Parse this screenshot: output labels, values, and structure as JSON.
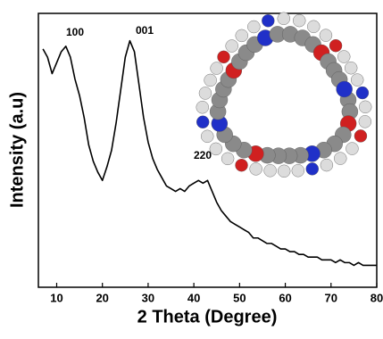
{
  "chart_data": {
    "type": "line",
    "x_label": "2 Theta (Degree)",
    "y_label": "Intensity (a.u)",
    "annotations": [
      "100",
      "001",
      "220"
    ],
    "x": [
      7,
      8,
      9,
      10,
      11,
      12,
      13,
      14,
      15,
      16,
      17,
      18,
      19,
      20,
      21,
      22,
      23,
      24,
      25,
      26,
      27,
      28,
      29,
      30,
      31,
      32,
      33,
      34,
      35,
      36,
      37,
      38,
      39,
      40,
      41,
      42,
      43,
      44,
      45,
      46,
      47,
      48,
      49,
      50,
      51,
      52,
      53,
      54,
      55,
      56,
      57,
      58,
      59,
      60,
      61,
      62,
      63,
      64,
      65,
      66,
      67,
      68,
      69,
      70,
      71,
      72,
      73,
      74,
      75,
      76,
      77,
      78,
      79,
      80
    ],
    "series": [
      {
        "color": "#000000",
        "values": [
          87,
          84,
          78,
          82,
          86,
          88,
          84,
          76,
          70,
          62,
          52,
          46,
          42,
          39,
          44,
          50,
          60,
          72,
          84,
          90,
          86,
          74,
          62,
          53,
          47,
          43,
          40,
          37,
          36,
          35,
          36,
          35,
          37,
          38,
          39,
          38,
          39,
          35,
          31,
          28,
          26,
          24,
          23,
          22,
          21,
          20,
          18,
          18,
          17,
          16,
          16,
          15,
          14,
          14,
          13,
          13,
          12,
          12,
          11,
          11,
          11,
          10,
          10,
          10,
          9,
          10,
          9,
          9,
          8,
          9,
          8,
          8,
          8,
          8
        ]
      }
    ],
    "xlim": [
      6,
      80
    ],
    "xticks": [
      10,
      20,
      30,
      40,
      50,
      60,
      70,
      80
    ],
    "ylim": [
      0,
      100
    ]
  }
}
